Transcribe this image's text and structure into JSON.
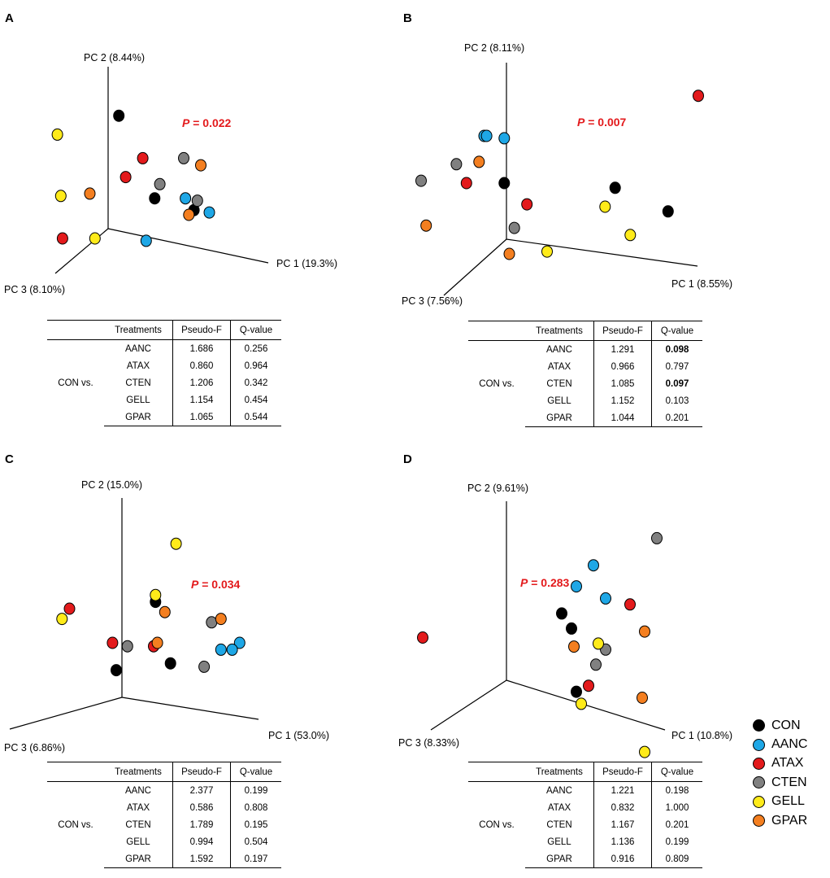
{
  "panels": {
    "A": {
      "letter": "A",
      "p_prefix": "P",
      "p_rest": " = 0.022",
      "axis": {
        "pc1": "PC 1 (19.3%)",
        "pc2": "PC 2 (8.44%)",
        "pc3": "PC 3 (8.10%)"
      },
      "table": {
        "headers": [
          "",
          "Treatments",
          "Pseudo-F",
          "Q-value"
        ],
        "group": "CON vs.",
        "rows": [
          [
            "AANC",
            "1.686",
            "0.256"
          ],
          [
            "ATAX",
            "0.860",
            "0.964"
          ],
          [
            "CTEN",
            "1.206",
            "0.342"
          ],
          [
            "GELL",
            "1.154",
            "0.454"
          ],
          [
            "GPAR",
            "1.065",
            "0.544"
          ]
        ]
      }
    },
    "B": {
      "letter": "B",
      "p_prefix": "P",
      "p_rest": " = 0.007",
      "axis": {
        "pc1": "PC 1 (8.55%)",
        "pc2": "PC 2 (8.11%)",
        "pc3": "PC 3 (7.56%)"
      },
      "table": {
        "headers": [
          "",
          "Treatments",
          "Pseudo-F",
          "Q-value"
        ],
        "group": "CON vs.",
        "rows": [
          [
            "AANC",
            "1.291",
            "0.098"
          ],
          [
            "ATAX",
            "0.966",
            "0.797"
          ],
          [
            "CTEN",
            "1.085",
            "0.097"
          ],
          [
            "GELL",
            "1.152",
            "0.103"
          ],
          [
            "GPAR",
            "1.044",
            "0.201"
          ]
        ]
      }
    },
    "C": {
      "letter": "C",
      "p_prefix": "P",
      "p_rest": " = 0.034",
      "axis": {
        "pc1": "PC 1 (53.0%)",
        "pc2": "PC 2 (15.0%)",
        "pc3": "PC 3 (6.86%)"
      },
      "table": {
        "headers": [
          "",
          "Treatments",
          "Pseudo-F",
          "Q-value"
        ],
        "group": "CON vs.",
        "rows": [
          [
            "AANC",
            "2.377",
            "0.199"
          ],
          [
            "ATAX",
            "0.586",
            "0.808"
          ],
          [
            "CTEN",
            "1.789",
            "0.195"
          ],
          [
            "GELL",
            "0.994",
            "0.504"
          ],
          [
            "GPAR",
            "1.592",
            "0.197"
          ]
        ]
      }
    },
    "D": {
      "letter": "D",
      "p_prefix": "P",
      "p_rest": " = 0.283",
      "axis": {
        "pc1": "PC 1 (10.8%)",
        "pc2": "PC 2 (9.61%)",
        "pc3": "PC 3 (8.33%)"
      },
      "table": {
        "headers": [
          "",
          "Treatments",
          "Pseudo-F",
          "Q-value"
        ],
        "group": "CON vs.",
        "rows": [
          [
            "AANC",
            "1.221",
            "0.198"
          ],
          [
            "ATAX",
            "0.832",
            "1.000"
          ],
          [
            "CTEN",
            "1.167",
            "0.201"
          ],
          [
            "GELL",
            "1.136",
            "0.199"
          ],
          [
            "GPAR",
            "0.916",
            "0.809"
          ]
        ]
      }
    }
  },
  "legend": [
    {
      "label": "CON",
      "color": "#000000"
    },
    {
      "label": "AANC",
      "color": "#1ea7e6"
    },
    {
      "label": "ATAX",
      "color": "#e31a1c"
    },
    {
      "label": "CTEN",
      "color": "#808080"
    },
    {
      "label": "GELL",
      "color": "#ffeb1a"
    },
    {
      "label": "GPAR",
      "color": "#f47f20"
    }
  ],
  "chart_data": [
    {
      "type": "scatter",
      "panel": "A",
      "title": "P = 0.022",
      "xlabel": "PC 1 (19.3%)",
      "ylabel": "PC 2 (8.44%)",
      "zlabel": "PC 3 (8.10%)",
      "series": [
        {
          "name": "CON",
          "color": "#000000",
          "points": [
            [
              22,
              82
            ],
            [
              66,
              42
            ],
            [
              43,
              47
            ]
          ]
        },
        {
          "name": "AANC",
          "color": "#1ea7e6",
          "points": [
            [
              61,
              47
            ],
            [
              75,
              41
            ],
            [
              38,
              29
            ]
          ]
        },
        {
          "name": "ATAX",
          "color": "#e31a1c",
          "points": [
            [
              36,
              64
            ],
            [
              26,
              56
            ],
            [
              -11,
              30
            ]
          ]
        },
        {
          "name": "CTEN",
          "color": "#808080",
          "points": [
            [
              60,
              64
            ],
            [
              46,
              53
            ],
            [
              68,
              46
            ]
          ]
        },
        {
          "name": "GELL",
          "color": "#ffeb1a",
          "points": [
            [
              -14,
              74
            ],
            [
              -12,
              48
            ],
            [
              8,
              30
            ]
          ]
        },
        {
          "name": "GPAR",
          "color": "#f47f20",
          "points": [
            [
              70,
              61
            ],
            [
              5,
              49
            ],
            [
              63,
              40
            ]
          ]
        }
      ]
    },
    {
      "type": "scatter",
      "panel": "B",
      "title": "P = 0.007",
      "xlabel": "PC 1 (8.55%)",
      "ylabel": "PC 2 (8.11%)",
      "zlabel": "PC 3 (7.56%)",
      "series": [
        {
          "name": "CON",
          "color": "#000000",
          "points": [
            [
              57,
              48
            ],
            [
              78,
              38
            ],
            [
              13,
              50
            ]
          ]
        },
        {
          "name": "AANC",
          "color": "#1ea7e6",
          "points": [
            [
              5,
              70
            ],
            [
              6,
              70
            ],
            [
              13,
              69
            ]
          ]
        },
        {
          "name": "ATAX",
          "color": "#e31a1c",
          "points": [
            [
              90,
              87
            ],
            [
              -2,
              50
            ],
            [
              22,
              41
            ]
          ]
        },
        {
          "name": "CTEN",
          "color": "#808080",
          "points": [
            [
              -20,
              51
            ],
            [
              -6,
              58
            ],
            [
              17,
              31
            ]
          ]
        },
        {
          "name": "GELL",
          "color": "#ffeb1a",
          "points": [
            [
              53,
              40
            ],
            [
              63,
              28
            ],
            [
              30,
              21
            ]
          ]
        },
        {
          "name": "GPAR",
          "color": "#f47f20",
          "points": [
            [
              3,
              59
            ],
            [
              -18,
              32
            ],
            [
              15,
              20
            ]
          ]
        }
      ]
    },
    {
      "type": "scatter",
      "panel": "C",
      "title": "P = 0.034",
      "xlabel": "PC 1 (53.0%)",
      "ylabel": "PC 2 (15.0%)",
      "zlabel": "PC 3 (6.86%)",
      "series": [
        {
          "name": "CON",
          "color": "#000000",
          "points": [
            [
              31,
              62
            ],
            [
              10,
              42
            ],
            [
              39,
              44
            ]
          ]
        },
        {
          "name": "AANC",
          "color": "#1ea7e6",
          "points": [
            [
              66,
              48
            ],
            [
              76,
              50
            ],
            [
              72,
              48
            ]
          ]
        },
        {
          "name": "ATAX",
          "color": "#e31a1c",
          "points": [
            [
              -15,
              60
            ],
            [
              8,
              50
            ],
            [
              30,
              49
            ]
          ]
        },
        {
          "name": "CTEN",
          "color": "#808080",
          "points": [
            [
              61,
              56
            ],
            [
              16,
              49
            ],
            [
              57,
              43
            ]
          ]
        },
        {
          "name": "GELL",
          "color": "#ffeb1a",
          "points": [
            [
              42,
              79
            ],
            [
              31,
              64
            ],
            [
              -19,
              57
            ]
          ]
        },
        {
          "name": "GPAR",
          "color": "#f47f20",
          "points": [
            [
              36,
              59
            ],
            [
              66,
              57
            ],
            [
              32,
              50
            ]
          ]
        }
      ]
    },
    {
      "type": "scatter",
      "panel": "D",
      "title": "P = 0.283",
      "xlabel": "PC 1 (10.8%)",
      "ylabel": "PC 2 (9.61%)",
      "zlabel": "PC 3 (8.33%)",
      "series": [
        {
          "name": "CON",
          "color": "#000000",
          "points": [
            [
              37,
              53
            ],
            [
              41,
              48
            ],
            [
              43,
              27
            ]
          ]
        },
        {
          "name": "AANC",
          "color": "#1ea7e6",
          "points": [
            [
              50,
              69
            ],
            [
              43,
              62
            ],
            [
              55,
              58
            ]
          ]
        },
        {
          "name": "ATAX",
          "color": "#e31a1c",
          "points": [
            [
              -20,
              45
            ],
            [
              65,
              56
            ],
            [
              48,
              29
            ]
          ]
        },
        {
          "name": "CTEN",
          "color": "#808080",
          "points": [
            [
              76,
              78
            ],
            [
              55,
              41
            ],
            [
              51,
              36
            ]
          ]
        },
        {
          "name": "GELL",
          "color": "#ffeb1a",
          "points": [
            [
              52,
              43
            ],
            [
              45,
              23
            ],
            [
              71,
              7
            ]
          ]
        },
        {
          "name": "GPAR",
          "color": "#f47f20",
          "points": [
            [
              42,
              42
            ],
            [
              71,
              47
            ],
            [
              70,
              25
            ]
          ]
        }
      ]
    }
  ]
}
